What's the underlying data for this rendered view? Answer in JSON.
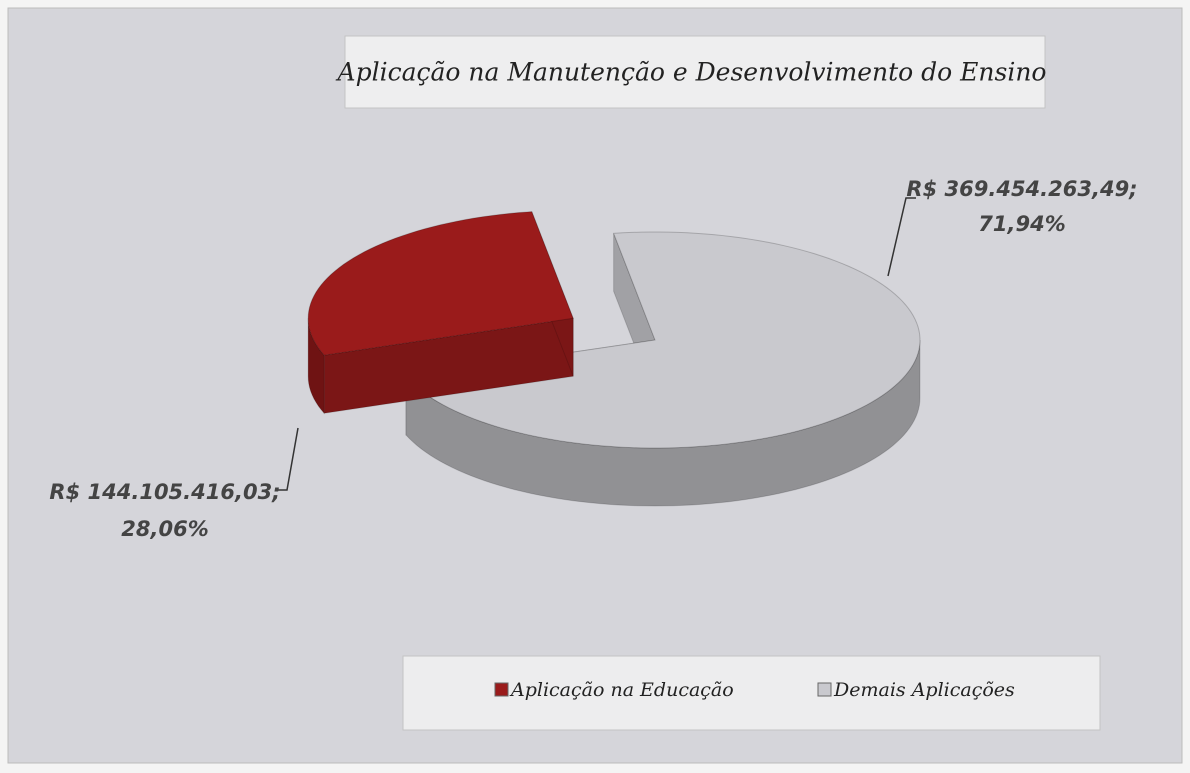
{
  "chart_data": {
    "type": "pie",
    "title": "Aplicação na Manutenção e Desenvolvimento do Ensino",
    "categories": [
      "Aplicação na Educação",
      "Demais Aplicações"
    ],
    "values": [
      144105416.03,
      369454263.49
    ],
    "value_labels": [
      [
        "R$ 144.105.416,03;",
        "28,06%"
      ],
      [
        "R$ 369.454.263,49;",
        "71,94%"
      ]
    ],
    "colors": [
      "#9a1b1b",
      "#c9c9ce"
    ]
  }
}
